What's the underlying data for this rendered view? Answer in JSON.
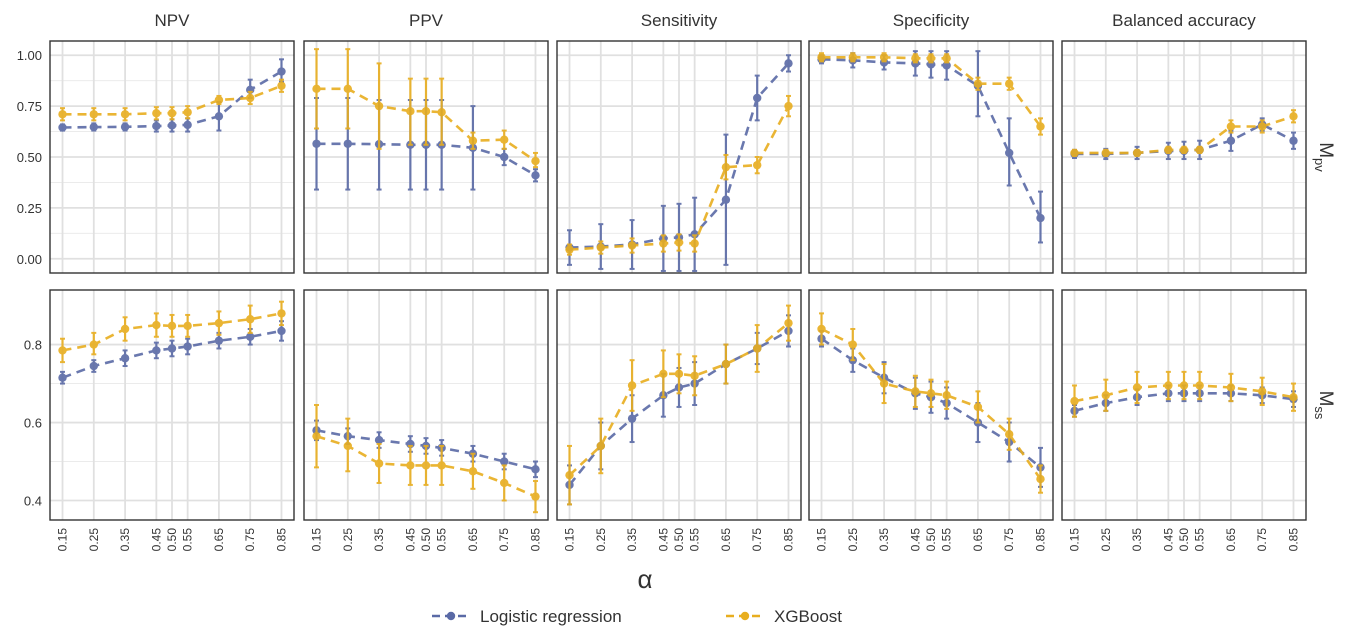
{
  "chart_data": {
    "type": "line",
    "layout": "faceted grid, 2 rows x 5 columns",
    "x": [
      0.15,
      0.25,
      0.35,
      0.45,
      0.5,
      0.55,
      0.65,
      0.75,
      0.85
    ],
    "x_tick_labels": [
      "0.15",
      "0.25",
      "0.35",
      "0.45",
      "0.50",
      "0.55",
      "0.65",
      "0.75",
      "0.85"
    ],
    "xlabel": "α",
    "columns": [
      "NPV",
      "PPV",
      "Sensitivity",
      "Specificity",
      "Balanced accuracy"
    ],
    "rows": [
      {
        "label_main": "M",
        "label_sub": "pv",
        "ylim": [
          -0.07,
          1.07
        ],
        "y_ticks": [
          0.0,
          0.25,
          0.5,
          0.75,
          1.0
        ],
        "y_tick_labels": [
          "0.00",
          "0.25",
          "0.50",
          "0.75",
          "1.00"
        ]
      },
      {
        "label_main": "M",
        "label_sub": "ss",
        "ylim": [
          0.35,
          0.94
        ],
        "y_ticks": [
          0.4,
          0.6,
          0.8
        ],
        "y_tick_labels": [
          "0.4",
          "0.6",
          "0.8"
        ]
      }
    ],
    "series": [
      {
        "name": "Logistic regression",
        "color": "#5a6aa6"
      },
      {
        "name": "XGBoost",
        "color": "#e8ae1f"
      }
    ],
    "legend_position": "bottom",
    "grid": true,
    "panels": [
      {
        "row": 0,
        "col": 0,
        "series": [
          {
            "values": [
              0.645,
              0.647,
              0.648,
              0.652,
              0.655,
              0.658,
              0.7,
              0.83,
              0.92
            ],
            "lower": [
              0.63,
              0.63,
              0.63,
              0.625,
              0.625,
              0.625,
              0.63,
              0.79,
              0.87
            ],
            "upper": [
              0.66,
              0.665,
              0.665,
              0.68,
              0.685,
              0.69,
              0.77,
              0.88,
              0.98
            ]
          },
          {
            "values": [
              0.71,
              0.71,
              0.71,
              0.715,
              0.715,
              0.72,
              0.78,
              0.79,
              0.85
            ],
            "lower": [
              0.68,
              0.68,
              0.68,
              0.685,
              0.685,
              0.69,
              0.76,
              0.76,
              0.82
            ],
            "upper": [
              0.74,
              0.74,
              0.74,
              0.745,
              0.745,
              0.75,
              0.8,
              0.82,
              0.88
            ]
          }
        ]
      },
      {
        "row": 0,
        "col": 1,
        "series": [
          {
            "values": [
              0.565,
              0.565,
              0.563,
              0.56,
              0.56,
              0.56,
              0.545,
              0.5,
              0.41
            ],
            "lower": [
              0.34,
              0.34,
              0.34,
              0.34,
              0.34,
              0.34,
              0.34,
              0.46,
              0.38
            ],
            "upper": [
              0.79,
              0.79,
              0.78,
              0.78,
              0.78,
              0.78,
              0.75,
              0.54,
              0.44
            ]
          },
          {
            "values": [
              0.835,
              0.835,
              0.75,
              0.725,
              0.725,
              0.72,
              0.58,
              0.585,
              0.48
            ],
            "lower": [
              0.64,
              0.64,
              0.54,
              0.56,
              0.56,
              0.56,
              0.54,
              0.54,
              0.45
            ],
            "upper": [
              1.03,
              1.03,
              0.96,
              0.885,
              0.885,
              0.885,
              0.62,
              0.63,
              0.52
            ]
          }
        ]
      },
      {
        "row": 0,
        "col": 2,
        "series": [
          {
            "values": [
              0.055,
              0.06,
              0.07,
              0.1,
              0.105,
              0.12,
              0.29,
              0.79,
              0.96
            ],
            "lower": [
              -0.03,
              -0.05,
              -0.05,
              -0.06,
              -0.06,
              -0.06,
              -0.03,
              0.68,
              0.92
            ],
            "upper": [
              0.14,
              0.17,
              0.19,
              0.26,
              0.27,
              0.3,
              0.61,
              0.9,
              1.0
            ]
          },
          {
            "values": [
              0.045,
              0.055,
              0.065,
              0.075,
              0.08,
              0.075,
              0.45,
              0.46,
              0.75
            ],
            "lower": [
              0.02,
              0.025,
              0.03,
              0.035,
              0.04,
              0.035,
              0.39,
              0.42,
              0.7
            ],
            "upper": [
              0.07,
              0.085,
              0.1,
              0.115,
              0.12,
              0.115,
              0.51,
              0.5,
              0.8
            ]
          }
        ]
      },
      {
        "row": 0,
        "col": 3,
        "series": [
          {
            "values": [
              0.98,
              0.975,
              0.965,
              0.96,
              0.955,
              0.95,
              0.85,
              0.52,
              0.2
            ],
            "lower": [
              0.96,
              0.94,
              0.93,
              0.9,
              0.89,
              0.88,
              0.7,
              0.36,
              0.08
            ],
            "upper": [
              1.0,
              1.01,
              1.0,
              1.02,
              1.02,
              1.02,
              1.02,
              0.69,
              0.33
            ]
          },
          {
            "values": [
              0.99,
              0.99,
              0.99,
              0.985,
              0.985,
              0.985,
              0.86,
              0.86,
              0.65
            ],
            "lower": [
              0.97,
              0.97,
              0.97,
              0.965,
              0.965,
              0.965,
              0.83,
              0.83,
              0.61
            ],
            "upper": [
              1.01,
              1.01,
              1.01,
              1.005,
              1.005,
              1.005,
              0.89,
              0.89,
              0.69
            ]
          }
        ]
      },
      {
        "row": 0,
        "col": 4,
        "series": [
          {
            "values": [
              0.515,
              0.515,
              0.52,
              0.53,
              0.53,
              0.535,
              0.58,
              0.66,
              0.58
            ],
            "lower": [
              0.495,
              0.49,
              0.49,
              0.49,
              0.49,
              0.49,
              0.53,
              0.63,
              0.54
            ],
            "upper": [
              0.535,
              0.54,
              0.55,
              0.57,
              0.575,
              0.58,
              0.63,
              0.69,
              0.62
            ]
          },
          {
            "values": [
              0.52,
              0.52,
              0.52,
              0.535,
              0.535,
              0.535,
              0.65,
              0.65,
              0.7
            ],
            "lower": [
              0.505,
              0.505,
              0.505,
              0.52,
              0.52,
              0.52,
              0.62,
              0.62,
              0.67
            ],
            "upper": [
              0.535,
              0.535,
              0.535,
              0.55,
              0.55,
              0.55,
              0.68,
              0.68,
              0.73
            ]
          }
        ]
      },
      {
        "row": 1,
        "col": 0,
        "series": [
          {
            "values": [
              0.715,
              0.745,
              0.765,
              0.785,
              0.79,
              0.795,
              0.81,
              0.82,
              0.835
            ],
            "lower": [
              0.7,
              0.73,
              0.745,
              0.765,
              0.77,
              0.775,
              0.79,
              0.8,
              0.81
            ],
            "upper": [
              0.73,
              0.76,
              0.785,
              0.805,
              0.81,
              0.815,
              0.83,
              0.84,
              0.86
            ]
          },
          {
            "values": [
              0.785,
              0.8,
              0.84,
              0.85,
              0.848,
              0.848,
              0.855,
              0.865,
              0.88
            ],
            "lower": [
              0.755,
              0.775,
              0.81,
              0.82,
              0.82,
              0.82,
              0.825,
              0.83,
              0.85
            ],
            "upper": [
              0.815,
              0.83,
              0.87,
              0.88,
              0.876,
              0.876,
              0.885,
              0.9,
              0.91
            ]
          }
        ]
      },
      {
        "row": 1,
        "col": 1,
        "series": [
          {
            "values": [
              0.58,
              0.565,
              0.555,
              0.545,
              0.54,
              0.535,
              0.52,
              0.5,
              0.48
            ],
            "lower": [
              0.555,
              0.545,
              0.535,
              0.525,
              0.52,
              0.515,
              0.5,
              0.48,
              0.46
            ],
            "upper": [
              0.605,
              0.585,
              0.575,
              0.565,
              0.56,
              0.555,
              0.54,
              0.52,
              0.5
            ]
          },
          {
            "values": [
              0.565,
              0.54,
              0.495,
              0.49,
              0.49,
              0.49,
              0.475,
              0.445,
              0.41
            ],
            "lower": [
              0.485,
              0.475,
              0.445,
              0.44,
              0.44,
              0.44,
              0.43,
              0.4,
              0.37
            ],
            "upper": [
              0.645,
              0.61,
              0.545,
              0.54,
              0.54,
              0.54,
              0.52,
              0.49,
              0.45
            ]
          }
        ]
      },
      {
        "row": 1,
        "col": 2,
        "series": [
          {
            "values": [
              0.44,
              0.54,
              0.61,
              0.67,
              0.69,
              0.7,
              0.75,
              0.79,
              0.835
            ],
            "lower": [
              0.39,
              0.48,
              0.55,
              0.615,
              0.64,
              0.645,
              0.7,
              0.75,
              0.795
            ],
            "upper": [
              0.49,
              0.6,
              0.67,
              0.725,
              0.74,
              0.755,
              0.8,
              0.83,
              0.875
            ]
          },
          {
            "values": [
              0.465,
              0.54,
              0.695,
              0.725,
              0.725,
              0.72,
              0.75,
              0.79,
              0.855
            ],
            "lower": [
              0.39,
              0.47,
              0.63,
              0.665,
              0.675,
              0.67,
              0.7,
              0.73,
              0.81
            ],
            "upper": [
              0.54,
              0.61,
              0.76,
              0.785,
              0.775,
              0.77,
              0.8,
              0.85,
              0.9
            ]
          }
        ]
      },
      {
        "row": 1,
        "col": 3,
        "series": [
          {
            "values": [
              0.815,
              0.76,
              0.715,
              0.675,
              0.665,
              0.65,
              0.6,
              0.55,
              0.485
            ],
            "lower": [
              0.795,
              0.73,
              0.675,
              0.635,
              0.625,
              0.61,
              0.55,
              0.5,
              0.435
            ],
            "upper": [
              0.835,
              0.79,
              0.755,
              0.715,
              0.705,
              0.69,
              0.65,
              0.6,
              0.535
            ]
          },
          {
            "values": [
              0.84,
              0.8,
              0.7,
              0.68,
              0.675,
              0.67,
              0.64,
              0.57,
              0.455
            ],
            "lower": [
              0.8,
              0.76,
              0.65,
              0.64,
              0.64,
              0.635,
              0.6,
              0.53,
              0.42
            ],
            "upper": [
              0.88,
              0.84,
              0.75,
              0.72,
              0.71,
              0.705,
              0.68,
              0.61,
              0.49
            ]
          }
        ]
      },
      {
        "row": 1,
        "col": 4,
        "series": [
          {
            "values": [
              0.63,
              0.65,
              0.665,
              0.675,
              0.675,
              0.675,
              0.675,
              0.67,
              0.66
            ],
            "lower": [
              0.615,
              0.63,
              0.645,
              0.655,
              0.655,
              0.655,
              0.655,
              0.65,
              0.64
            ],
            "upper": [
              0.645,
              0.67,
              0.685,
              0.695,
              0.695,
              0.695,
              0.695,
              0.69,
              0.68
            ]
          },
          {
            "values": [
              0.655,
              0.67,
              0.69,
              0.695,
              0.695,
              0.695,
              0.69,
              0.68,
              0.665
            ],
            "lower": [
              0.615,
              0.63,
              0.65,
              0.66,
              0.66,
              0.66,
              0.655,
              0.645,
              0.63
            ],
            "upper": [
              0.695,
              0.71,
              0.73,
              0.73,
              0.73,
              0.73,
              0.725,
              0.715,
              0.7
            ]
          }
        ]
      }
    ]
  }
}
